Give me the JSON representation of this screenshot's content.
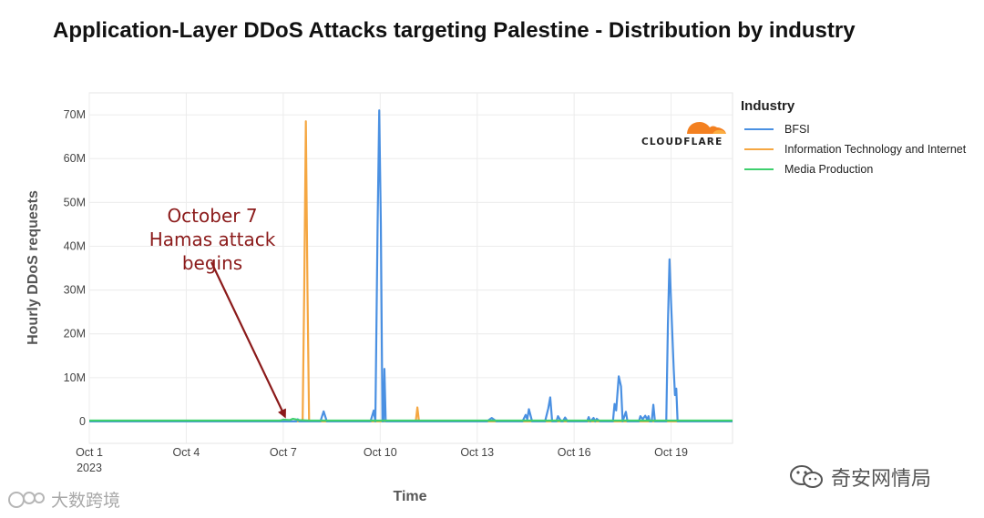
{
  "colors": {
    "bfsi": "#4a90e2",
    "it": "#f5a742",
    "media": "#3ecf6e",
    "annotation": "#8b1a1a",
    "cloudflare_orange": "#f38020"
  },
  "logo_text": "CLOUDFLARE",
  "annotation": {
    "line1": "October 7",
    "line2": "Hamas attack begins"
  },
  "watermarks": {
    "right": "奇安网情局",
    "left": "大数跨境"
  },
  "chart_data": {
    "type": "line",
    "title": "Application-Layer DDoS Attacks targeting Palestine - Distribution by industry",
    "xlabel": "Time",
    "ylabel": "Hourly DDoS requests",
    "ylim": [
      -5,
      75
    ],
    "xlim": [
      0,
      19.9
    ],
    "x_unit": "days since Oct 1 2023",
    "x_ticks": [
      {
        "x": 0,
        "label": "Oct 1",
        "sublabel": "2023"
      },
      {
        "x": 3,
        "label": "Oct 4",
        "sublabel": ""
      },
      {
        "x": 6,
        "label": "Oct 7",
        "sublabel": ""
      },
      {
        "x": 9,
        "label": "Oct 10",
        "sublabel": ""
      },
      {
        "x": 12,
        "label": "Oct 13",
        "sublabel": ""
      },
      {
        "x": 15,
        "label": "Oct 16",
        "sublabel": ""
      },
      {
        "x": 18,
        "label": "Oct 19",
        "sublabel": ""
      }
    ],
    "y_ticks": [
      {
        "y": 0,
        "label": "0"
      },
      {
        "y": 10,
        "label": "10M"
      },
      {
        "y": 20,
        "label": "20M"
      },
      {
        "y": 30,
        "label": "30M"
      },
      {
        "y": 40,
        "label": "40M"
      },
      {
        "y": 50,
        "label": "50M"
      },
      {
        "y": 60,
        "label": "60M"
      },
      {
        "y": 70,
        "label": "70M"
      }
    ],
    "legend": {
      "title": "Industry",
      "position": "right"
    },
    "series": [
      {
        "name": "BFSI",
        "color": "#4a90e2",
        "points": [
          [
            0,
            0
          ],
          [
            6.4,
            0
          ],
          [
            6.45,
            0.5
          ],
          [
            6.5,
            0
          ],
          [
            7.15,
            0
          ],
          [
            7.25,
            2.3
          ],
          [
            7.35,
            0
          ],
          [
            8.7,
            0
          ],
          [
            8.8,
            2.5
          ],
          [
            8.85,
            0
          ],
          [
            8.85,
            0
          ],
          [
            8.92,
            45
          ],
          [
            8.97,
            71
          ],
          [
            9.02,
            45
          ],
          [
            9.07,
            0
          ],
          [
            9.1,
            0
          ],
          [
            9.13,
            12
          ],
          [
            9.17,
            0
          ],
          [
            9.2,
            0
          ],
          [
            12.3,
            0
          ],
          [
            12.45,
            0.8
          ],
          [
            12.6,
            0
          ],
          [
            13.4,
            0
          ],
          [
            13.5,
            1.5
          ],
          [
            13.55,
            0.5
          ],
          [
            13.6,
            2.8
          ],
          [
            13.7,
            0
          ],
          [
            14.1,
            0
          ],
          [
            14.2,
            3
          ],
          [
            14.26,
            5.5
          ],
          [
            14.32,
            0
          ],
          [
            14.45,
            0
          ],
          [
            14.5,
            1.2
          ],
          [
            14.6,
            0
          ],
          [
            14.65,
            0
          ],
          [
            14.72,
            0.9
          ],
          [
            14.8,
            0
          ],
          [
            15.4,
            0
          ],
          [
            15.45,
            1
          ],
          [
            15.5,
            0
          ],
          [
            15.6,
            0.8
          ],
          [
            15.65,
            0
          ],
          [
            15.7,
            0.6
          ],
          [
            15.8,
            0
          ],
          [
            16.2,
            0
          ],
          [
            16.25,
            4
          ],
          [
            16.3,
            2.5
          ],
          [
            16.38,
            10.3
          ],
          [
            16.45,
            8
          ],
          [
            16.5,
            0
          ],
          [
            16.6,
            2.2
          ],
          [
            16.65,
            0
          ],
          [
            17.0,
            0
          ],
          [
            17.05,
            1.2
          ],
          [
            17.12,
            0.5
          ],
          [
            17.2,
            1.3
          ],
          [
            17.26,
            0.4
          ],
          [
            17.3,
            1.2
          ],
          [
            17.34,
            0
          ],
          [
            17.4,
            0
          ],
          [
            17.45,
            3.8
          ],
          [
            17.5,
            0
          ],
          [
            17.85,
            0
          ],
          [
            17.9,
            22
          ],
          [
            17.95,
            37
          ],
          [
            18.0,
            27
          ],
          [
            18.08,
            12
          ],
          [
            18.12,
            6
          ],
          [
            18.16,
            7.5
          ],
          [
            18.2,
            0
          ],
          [
            18.25,
            0
          ],
          [
            19.9,
            0
          ]
        ]
      },
      {
        "name": "Information Technology and Internet",
        "color": "#f5a742",
        "points": [
          [
            0,
            0
          ],
          [
            6.5,
            0
          ],
          [
            6.6,
            0
          ],
          [
            6.65,
            30
          ],
          [
            6.7,
            68.5
          ],
          [
            6.75,
            30
          ],
          [
            6.8,
            0
          ],
          [
            10.0,
            0
          ],
          [
            10.1,
            0
          ],
          [
            10.15,
            3.2
          ],
          [
            10.2,
            0
          ],
          [
            10.3,
            0
          ],
          [
            19.9,
            0
          ]
        ]
      },
      {
        "name": "Media Production",
        "color": "#3ecf6e",
        "points": [
          [
            0,
            0.2
          ],
          [
            5.9,
            0.2
          ],
          [
            6.0,
            0.4
          ],
          [
            6.2,
            0.3
          ],
          [
            6.3,
            0.6
          ],
          [
            6.5,
            0.3
          ],
          [
            6.8,
            0.2
          ],
          [
            19.9,
            0.2
          ]
        ]
      }
    ]
  }
}
